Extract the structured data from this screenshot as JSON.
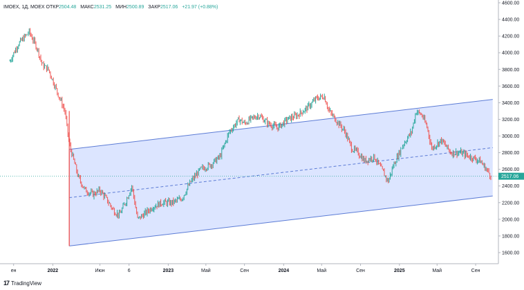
{
  "header": {
    "symbol": "IMOEX, 1Д, MOEX",
    "open_label": "ОТКР",
    "open_value": "2504.48",
    "high_label": "МАКС",
    "high_value": "2531.25",
    "low_label": "МИН",
    "low_value": "2500.89",
    "close_label": "ЗАКР",
    "close_value": "2517.06",
    "change": "+21.97 (+0.88%)"
  },
  "footer": {
    "brand": "TradingView",
    "logo_glyph": "17"
  },
  "colors": {
    "up": "#26a69a",
    "down": "#ef5350",
    "channel_fill": "#d6e0ff",
    "channel_line": "#5b7bd5",
    "last_price_bg": "#26a69a"
  },
  "chart_data": {
    "type": "line",
    "title": "",
    "ylim": [
      1500,
      4600
    ],
    "y_ticks": [
      "4600.00",
      "4400.00",
      "4200.00",
      "4000.00",
      "3800.00",
      "3600.00",
      "3400.00",
      "3200.00",
      "3000.00",
      "2800.00",
      "2600.00",
      "2400.00",
      "2200.00",
      "2000.00",
      "1800.00",
      "1600.00"
    ],
    "y_tick_values": [
      4600,
      4400,
      4200,
      4000,
      3800,
      3600,
      3400,
      3200,
      3000,
      2800,
      2600,
      2400,
      2200,
      2000,
      1800,
      1600
    ],
    "x_ticks": [
      "ен",
      "2022",
      "Июн",
      "6",
      "2023",
      "Май",
      "Сен",
      "2024",
      "Май",
      "Сен",
      "2025",
      "Май",
      "Сен"
    ],
    "x_tick_dates": [
      "2021-09-01",
      "2022-01-03",
      "2022-06-01",
      "2022-09-01",
      "2023-01-03",
      "2023-05-02",
      "2023-09-01",
      "2024-01-03",
      "2024-05-02",
      "2024-09-02",
      "2025-01-03",
      "2025-05-02",
      "2025-09-01"
    ],
    "last_price": "2517.06",
    "last_price_value": 2517.06,
    "series": [
      {
        "x": [
          "2021-08-20",
          "2021-09-15",
          "2021-10-20",
          "2021-11-15",
          "2021-12-01",
          "2021-12-20",
          "2022-01-20",
          "2022-02-10",
          "2022-02-24",
          "2022-03-25",
          "2022-04-15",
          "2022-05-10",
          "2022-06-01",
          "2022-06-20",
          "2022-07-15",
          "2022-08-01",
          "2022-08-20",
          "2022-09-10",
          "2022-09-28",
          "2022-10-15",
          "2022-11-15",
          "2022-12-15",
          "2023-01-15",
          "2023-02-15",
          "2023-03-15",
          "2023-04-15",
          "2023-05-15",
          "2023-06-15",
          "2023-07-15",
          "2023-08-15",
          "2023-09-01",
          "2023-09-20",
          "2023-10-15",
          "2023-11-15",
          "2023-12-15",
          "2024-01-15",
          "2024-02-15",
          "2024-03-15",
          "2024-04-15",
          "2024-05-10",
          "2024-05-25",
          "2024-06-15",
          "2024-07-15",
          "2024-08-05",
          "2024-08-25",
          "2024-09-15",
          "2024-10-15",
          "2024-11-15",
          "2024-11-28",
          "2024-12-15",
          "2025-01-15",
          "2025-02-10",
          "2025-02-25",
          "2025-03-15",
          "2025-04-01",
          "2025-04-15",
          "2025-05-15",
          "2025-06-15",
          "2025-07-15",
          "2025-08-15",
          "2025-09-15",
          "2025-10-05",
          "2025-10-20"
        ],
        "y": [
          3900,
          4100,
          4250,
          4050,
          3850,
          3800,
          3500,
          3300,
          2900,
          2500,
          2350,
          2300,
          2350,
          2250,
          2100,
          2050,
          2200,
          2400,
          2000,
          2050,
          2150,
          2200,
          2200,
          2250,
          2450,
          2600,
          2650,
          2750,
          3050,
          3200,
          3150,
          3200,
          3250,
          3150,
          3100,
          3200,
          3250,
          3330,
          3450,
          3480,
          3300,
          3200,
          3050,
          2850,
          2800,
          2700,
          2750,
          2550,
          2450,
          2650,
          2900,
          3050,
          3300,
          3250,
          3100,
          2850,
          2950,
          2800,
          2800,
          2750,
          2700,
          2600,
          2517
        ]
      }
    ],
    "channel": {
      "upper": [
        [
          "2022-02-24",
          2840
        ],
        [
          "2025-10-25",
          3440
        ]
      ],
      "middle": [
        [
          "2022-02-24",
          2260
        ],
        [
          "2025-10-25",
          2860
        ]
      ],
      "lower": [
        [
          "2022-02-24",
          1680
        ],
        [
          "2025-10-25",
          2280
        ]
      ]
    }
  }
}
